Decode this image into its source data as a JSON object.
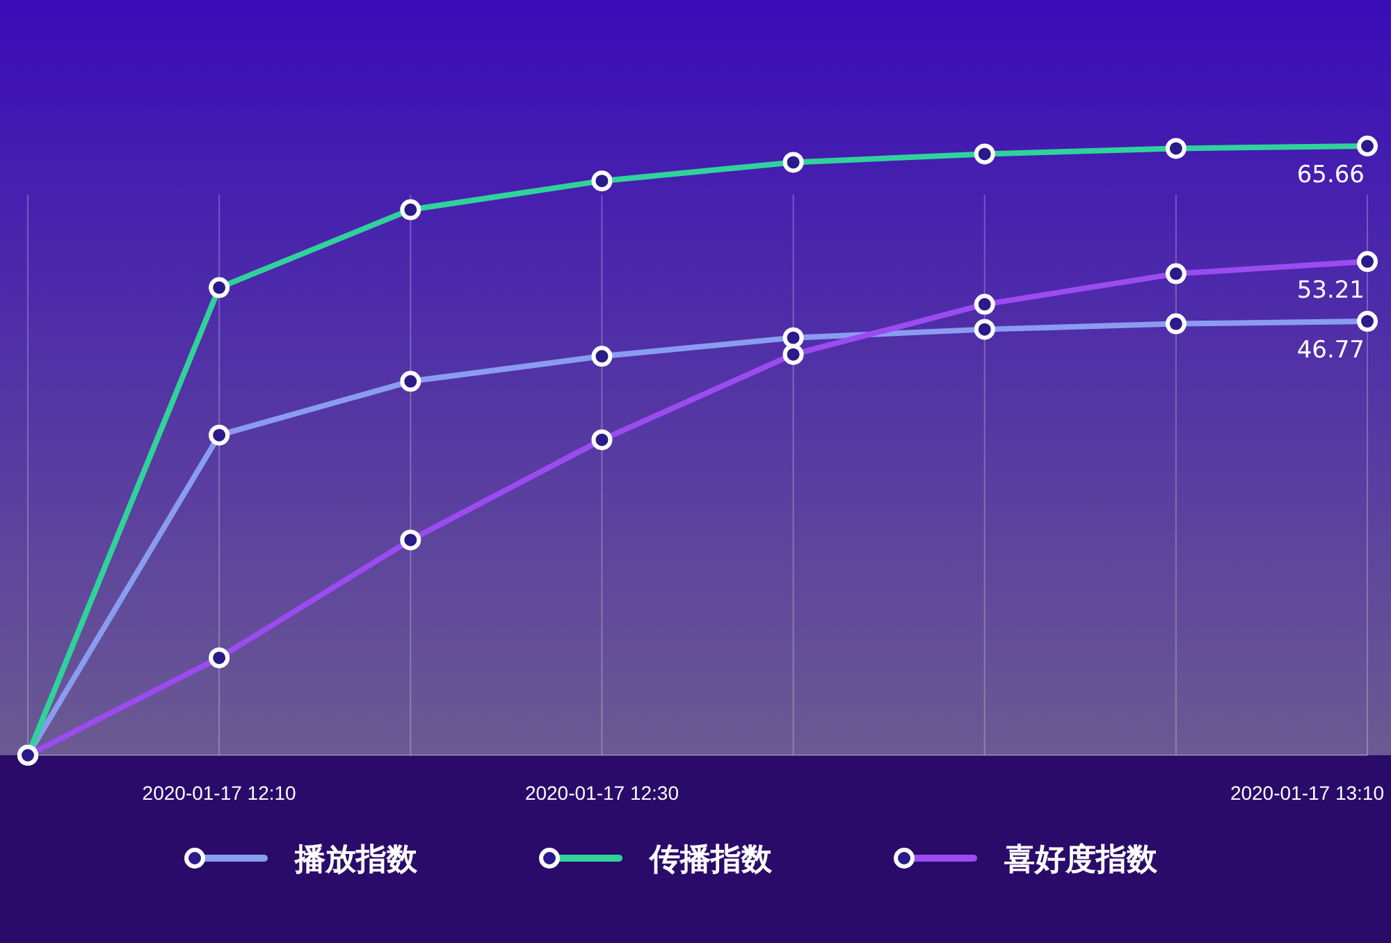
{
  "chart_data": {
    "type": "line",
    "x": [
      "2020-01-17T12:00",
      "2020-01-17T12:10",
      "2020-01-17T12:20",
      "2020-01-17T12:30",
      "2020-01-17T12:40",
      "2020-01-17T12:50",
      "2020-01-17T13:00",
      "2020-01-17T13:10"
    ],
    "xlim": [
      "2020-01-17T12:00",
      "2020-01-17T13:10"
    ],
    "xticks": [
      {
        "value": "2020-01-17T12:10",
        "label": "2020-01-17 12:10"
      },
      {
        "value": "2020-01-17T12:30",
        "label": "2020-01-17 12:30"
      },
      {
        "value": "2020-01-17T13:10",
        "label": "2020-01-17 13:10"
      }
    ],
    "tick_labels": "x",
    "grid": "x",
    "marker": "circle",
    "legend": "bottom",
    "series": [
      {
        "name": "播放指数",
        "color": "#8a9cf0",
        "values": [
          0,
          34.5,
          40.3,
          43.0,
          45.0,
          45.9,
          46.5,
          46.77
        ],
        "value_labels": [
          null,
          null,
          null,
          null,
          null,
          null,
          null,
          "46.77"
        ]
      },
      {
        "name": "传播指数",
        "color": "#2fd39a",
        "values": [
          0,
          50.4,
          58.8,
          61.9,
          63.9,
          64.8,
          65.4,
          65.66
        ],
        "value_labels": [
          null,
          null,
          null,
          null,
          null,
          null,
          null,
          "65.66"
        ]
      },
      {
        "name": "喜好度指数",
        "color": "#9b4cf0",
        "values": [
          0,
          10.5,
          23.2,
          34.0,
          43.2,
          48.6,
          51.9,
          53.21
        ],
        "value_labels": [
          null,
          null,
          null,
          null,
          null,
          null,
          null,
          "53.21"
        ]
      }
    ]
  }
}
